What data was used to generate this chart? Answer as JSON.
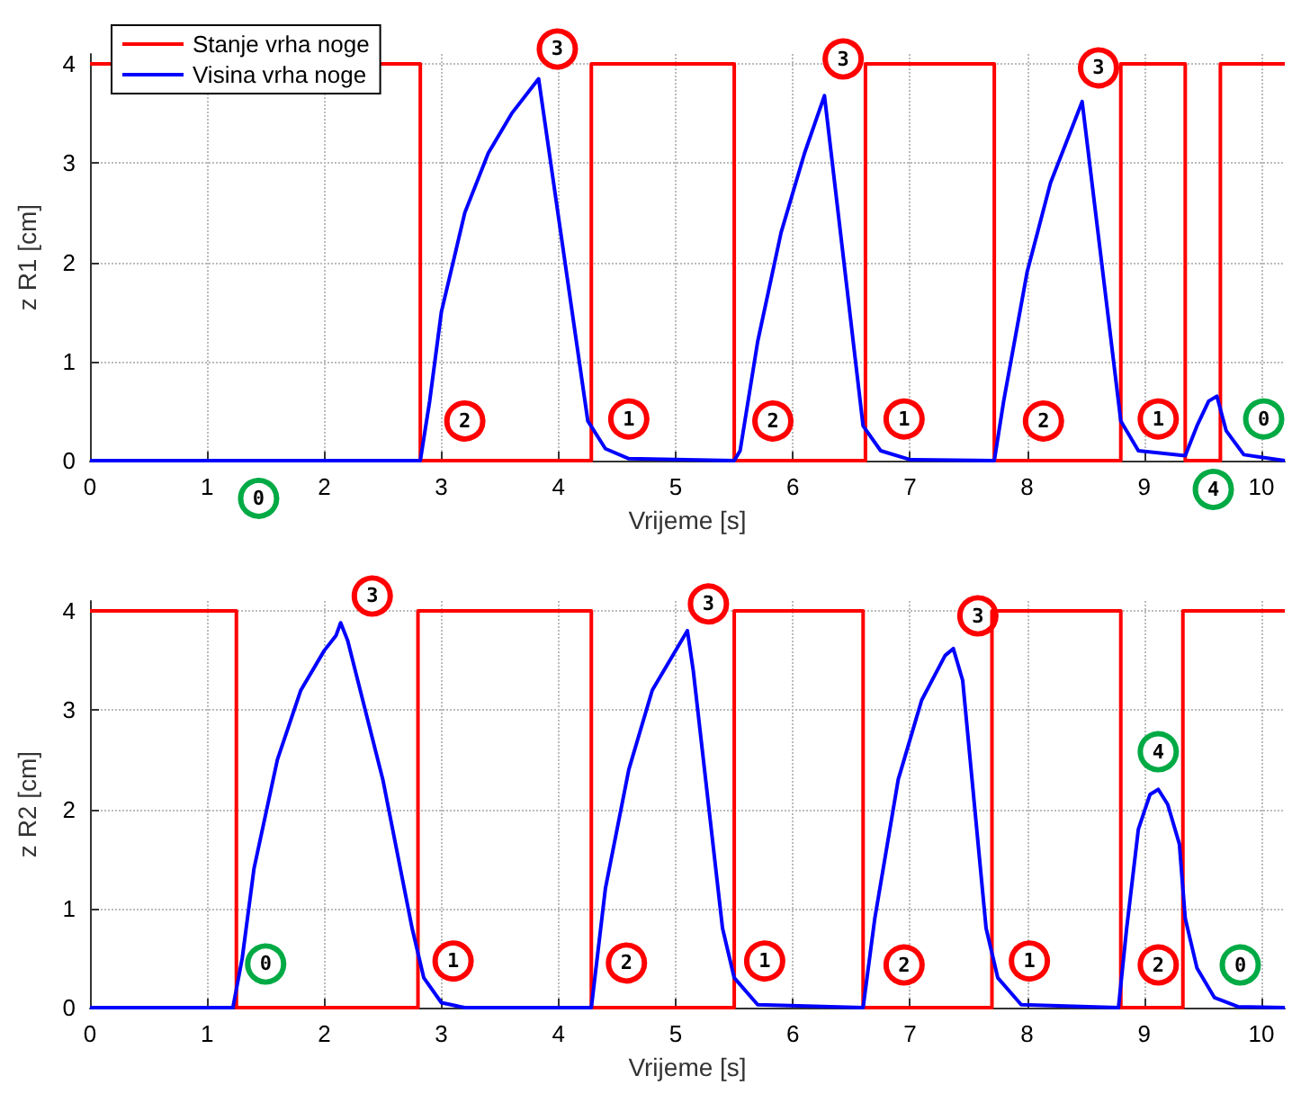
{
  "chart_data": [
    {
      "type": "line",
      "xlabel": "Vrijeme [s]",
      "ylabel": "z R1 [cm]",
      "xlim": [
        0,
        10.2
      ],
      "ylim": [
        0,
        4.1
      ],
      "xticks": [
        0,
        1,
        2,
        3,
        4,
        5,
        6,
        7,
        8,
        9,
        10
      ],
      "yticks": [
        0,
        1,
        2,
        3,
        4
      ],
      "grid": true,
      "legend": "top left",
      "marker": "none",
      "series": [
        {
          "name": "Stanje vrha noge",
          "type": "step",
          "color": "#ff0000",
          "x": [
            0,
            2.82,
            4.28,
            5.5,
            6.62,
            7.72,
            8.8,
            9.35,
            9.65,
            10.2
          ],
          "values": [
            4,
            0,
            4,
            0,
            4,
            0,
            4,
            0,
            4,
            4
          ]
        },
        {
          "name": "Visina vrha noge",
          "type": "line",
          "color": "#0000ff",
          "x": [
            0,
            2.82,
            2.9,
            3.0,
            3.2,
            3.4,
            3.6,
            3.83,
            4.25,
            4.4,
            4.6,
            5.5,
            5.55,
            5.7,
            5.9,
            6.1,
            6.27,
            6.6,
            6.75,
            7.0,
            7.72,
            7.8,
            8.0,
            8.2,
            8.47,
            8.8,
            8.95,
            9.35,
            9.45,
            9.55,
            9.62,
            9.7,
            9.85,
            10.2
          ],
          "values": [
            0,
            0,
            0.6,
            1.5,
            2.5,
            3.1,
            3.5,
            3.85,
            0.4,
            0.12,
            0.02,
            0,
            0.1,
            1.2,
            2.3,
            3.1,
            3.68,
            0.35,
            0.1,
            0.01,
            0,
            0.6,
            1.9,
            2.8,
            3.62,
            0.4,
            0.1,
            0.05,
            0.35,
            0.6,
            0.65,
            0.3,
            0.06,
            0
          ]
        }
      ],
      "annotations": [
        "3",
        "3",
        "3",
        "2",
        "1",
        "2",
        "1",
        "2",
        "1",
        "0",
        "0",
        "4"
      ]
    },
    {
      "type": "line",
      "xlabel": "Vrijeme [s]",
      "ylabel": "z R2 [cm]",
      "xlim": [
        0,
        10.2
      ],
      "ylim": [
        0,
        4.1
      ],
      "xticks": [
        0,
        1,
        2,
        3,
        4,
        5,
        6,
        7,
        8,
        9,
        10
      ],
      "yticks": [
        0,
        1,
        2,
        3,
        4
      ],
      "grid": true,
      "legend": false,
      "marker": "none",
      "series": [
        {
          "type": "step",
          "color": "#ff0000",
          "x": [
            0,
            1.25,
            2.8,
            4.28,
            5.5,
            6.6,
            7.7,
            8.8,
            9.33,
            10.2
          ],
          "values": [
            4,
            0,
            4,
            0,
            4,
            0,
            4,
            0,
            4,
            4
          ]
        },
        {
          "type": "line",
          "color": "#0000ff",
          "x": [
            0,
            1.22,
            1.3,
            1.4,
            1.6,
            1.8,
            2.0,
            2.1,
            2.14,
            2.2,
            2.5,
            2.75,
            2.85,
            3.0,
            3.2,
            4.28,
            4.4,
            4.6,
            4.8,
            5.05,
            5.1,
            5.15,
            5.4,
            5.5,
            5.7,
            6.6,
            6.7,
            6.9,
            7.1,
            7.3,
            7.37,
            7.45,
            7.65,
            7.75,
            7.95,
            8.78,
            8.85,
            8.95,
            9.05,
            9.12,
            9.2,
            9.3,
            9.35,
            9.45,
            9.6,
            9.8,
            10.2
          ],
          "values": [
            0,
            0,
            0.5,
            1.4,
            2.5,
            3.2,
            3.6,
            3.75,
            3.88,
            3.7,
            2.3,
            0.8,
            0.3,
            0.05,
            0,
            0,
            1.2,
            2.4,
            3.2,
            3.7,
            3.8,
            3.4,
            0.8,
            0.3,
            0.03,
            0,
            0.9,
            2.3,
            3.1,
            3.55,
            3.62,
            3.3,
            0.8,
            0.3,
            0.03,
            0,
            0.8,
            1.8,
            2.15,
            2.2,
            2.05,
            1.65,
            0.9,
            0.4,
            0.1,
            0.01,
            0
          ]
        }
      ],
      "annotations": [
        "3",
        "3",
        "3",
        "0",
        "1",
        "2",
        "1",
        "2",
        "1",
        "4",
        "2",
        "0"
      ]
    }
  ]
}
